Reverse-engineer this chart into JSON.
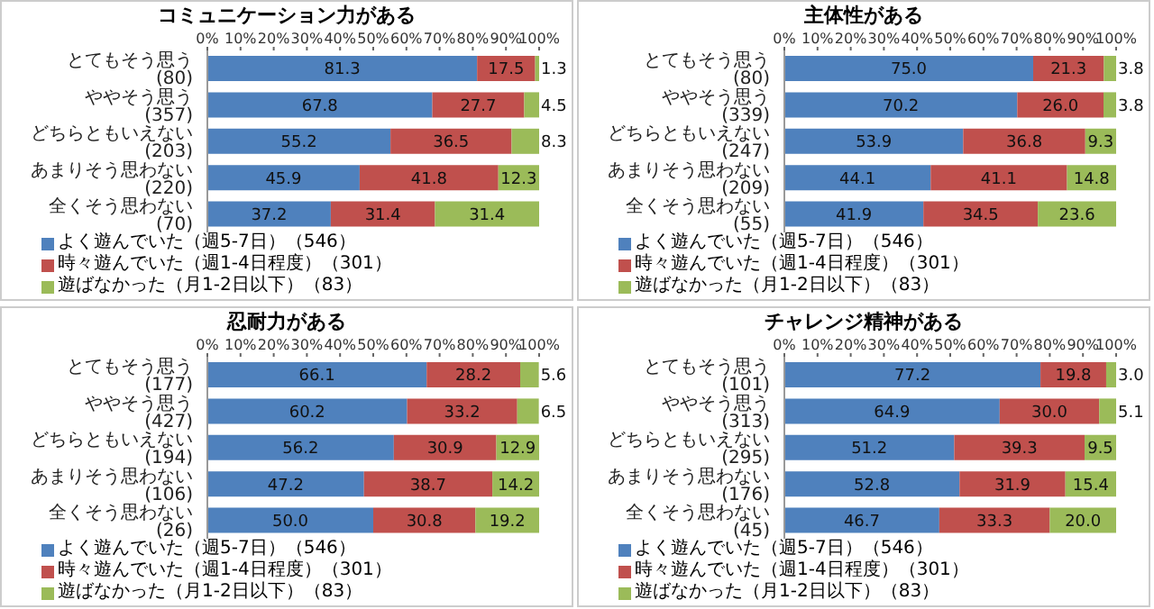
{
  "chart_data": [
    {
      "type": "bar",
      "orientation": "horizontal",
      "stacked": true,
      "title": "コミュニケーション力がある",
      "categories": [
        "とてもそう思う (80)",
        "ややそう思う (357)",
        "どちらともいえない (203)",
        "あまりそう思わない (220)",
        "全くそう思わない (70)"
      ],
      "series": [
        {
          "name": "よく遊んでいた（週5-7日）（546）",
          "color": "#4f81bd",
          "values": [
            81.3,
            67.8,
            55.2,
            45.9,
            37.2
          ],
          "value_labels": [
            "81.3",
            "67.8",
            "55.2",
            "45.9",
            "37.2"
          ]
        },
        {
          "name": "時々遊んでいた（週1-4日程度）（301）",
          "color": "#c0504d",
          "values": [
            17.5,
            27.7,
            36.5,
            41.8,
            31.4
          ],
          "value_labels": [
            "17.5",
            "27.7",
            "36.5",
            "41.8",
            "31.4"
          ]
        },
        {
          "name": "遊ばなかった（月1-2日以下）（83）",
          "color": "#9bbb59",
          "values": [
            1.3,
            4.5,
            8.3,
            12.3,
            31.4
          ],
          "value_labels": [
            "1.3",
            "4.5",
            "8.3",
            "12.3",
            "31.4"
          ]
        }
      ],
      "xlim": [
        0,
        100
      ],
      "xticks": [
        {
          "value": 0,
          "label": "0%"
        },
        {
          "value": 10,
          "label": "10%"
        },
        {
          "value": 20,
          "label": "20%"
        },
        {
          "value": 30,
          "label": "30%"
        },
        {
          "value": 40,
          "label": "40%"
        },
        {
          "value": 50,
          "label": "50%"
        },
        {
          "value": 60,
          "label": "60%"
        },
        {
          "value": 70,
          "label": "70%"
        },
        {
          "value": 80,
          "label": "80%"
        },
        {
          "value": 90,
          "label": "90%"
        },
        {
          "value": 100,
          "label": "100%"
        }
      ],
      "legend": "bottom"
    },
    {
      "type": "bar",
      "orientation": "horizontal",
      "stacked": true,
      "title": "主体性がある",
      "categories": [
        "とてもそう思う (80)",
        "ややそう思う (339)",
        "どちらともいえない (247)",
        "あまりそう思わない (209)",
        "全くそう思わない (55)"
      ],
      "series": [
        {
          "name": "よく遊んでいた（週5-7日）（546）",
          "color": "#4f81bd",
          "values": [
            75.0,
            70.2,
            53.9,
            44.1,
            41.9
          ],
          "value_labels": [
            "75.0",
            "70.2",
            "53.9",
            "44.1",
            "41.9"
          ]
        },
        {
          "name": "時々遊んでいた（週1-4日程度）（301）",
          "color": "#c0504d",
          "values": [
            21.3,
            26.0,
            36.8,
            41.1,
            34.5
          ],
          "value_labels": [
            "21.3",
            "26.0",
            "36.8",
            "41.1",
            "34.5"
          ]
        },
        {
          "name": "遊ばなかった（月1-2日以下）（83）",
          "color": "#9bbb59",
          "values": [
            3.8,
            3.8,
            9.3,
            14.8,
            23.6
          ],
          "value_labels": [
            "3.8",
            "3.8",
            "9.3",
            "14.8",
            "23.6"
          ]
        }
      ],
      "xlim": [
        0,
        100
      ],
      "xticks": [
        {
          "value": 0,
          "label": "0%"
        },
        {
          "value": 10,
          "label": "10%"
        },
        {
          "value": 20,
          "label": "20%"
        },
        {
          "value": 30,
          "label": "30%"
        },
        {
          "value": 40,
          "label": "40%"
        },
        {
          "value": 50,
          "label": "50%"
        },
        {
          "value": 60,
          "label": "60%"
        },
        {
          "value": 70,
          "label": "70%"
        },
        {
          "value": 80,
          "label": "80%"
        },
        {
          "value": 90,
          "label": "90%"
        },
        {
          "value": 100,
          "label": "100%"
        }
      ],
      "legend": "bottom"
    },
    {
      "type": "bar",
      "orientation": "horizontal",
      "stacked": true,
      "title": "忍耐力がある",
      "categories": [
        "とてもそう思う (177)",
        "ややそう思う (427)",
        "どちらともいえない (194)",
        "あまりそう思わない (106)",
        "全くそう思わない (26)"
      ],
      "series": [
        {
          "name": "よく遊んでいた（週5-7日）（546）",
          "color": "#4f81bd",
          "values": [
            66.1,
            60.2,
            56.2,
            47.2,
            50.0
          ],
          "value_labels": [
            "66.1",
            "60.2",
            "56.2",
            "47.2",
            "50.0"
          ]
        },
        {
          "name": "時々遊んでいた（週1-4日程度）（301）",
          "color": "#c0504d",
          "values": [
            28.2,
            33.2,
            30.9,
            38.7,
            30.8
          ],
          "value_labels": [
            "28.2",
            "33.2",
            "30.9",
            "38.7",
            "30.8"
          ]
        },
        {
          "name": "遊ばなかった（月1-2日以下）（83）",
          "color": "#9bbb59",
          "values": [
            5.6,
            6.5,
            12.9,
            14.2,
            19.2
          ],
          "value_labels": [
            "5.6",
            "6.5",
            "12.9",
            "14.2",
            "19.2"
          ]
        }
      ],
      "xlim": [
        0,
        100
      ],
      "xticks": [
        {
          "value": 0,
          "label": "0%"
        },
        {
          "value": 10,
          "label": "10%"
        },
        {
          "value": 20,
          "label": "20%"
        },
        {
          "value": 30,
          "label": "30%"
        },
        {
          "value": 40,
          "label": "40%"
        },
        {
          "value": 50,
          "label": "50%"
        },
        {
          "value": 60,
          "label": "60%"
        },
        {
          "value": 70,
          "label": "70%"
        },
        {
          "value": 80,
          "label": "80%"
        },
        {
          "value": 90,
          "label": "90%"
        },
        {
          "value": 100,
          "label": "100%"
        }
      ],
      "legend": "bottom"
    },
    {
      "type": "bar",
      "orientation": "horizontal",
      "stacked": true,
      "title": "チャレンジ精神がある",
      "categories": [
        "とてもそう思う (101)",
        "ややそう思う (313)",
        "どちらともいえない (295)",
        "あまりそう思わない (176)",
        "全くそう思わない (45)"
      ],
      "series": [
        {
          "name": "よく遊んでいた（週5-7日）（546）",
          "color": "#4f81bd",
          "values": [
            77.2,
            64.9,
            51.2,
            52.8,
            46.7
          ],
          "value_labels": [
            "77.2",
            "64.9",
            "51.2",
            "52.8",
            "46.7"
          ]
        },
        {
          "name": "時々遊んでいた（週1-4日程度）（301）",
          "color": "#c0504d",
          "values": [
            19.8,
            30.0,
            39.3,
            31.9,
            33.3
          ],
          "value_labels": [
            "19.8",
            "30.0",
            "39.3",
            "31.9",
            "33.3"
          ]
        },
        {
          "name": "遊ばなかった（月1-2日以下）（83）",
          "color": "#9bbb59",
          "values": [
            3.0,
            5.1,
            9.5,
            15.4,
            20.0
          ],
          "value_labels": [
            "3.0",
            "5.1",
            "9.5",
            "15.4",
            "20.0"
          ]
        }
      ],
      "xlim": [
        0,
        100
      ],
      "xticks": [
        {
          "value": 0,
          "label": "0%"
        },
        {
          "value": 10,
          "label": "10%"
        },
        {
          "value": 20,
          "label": "20%"
        },
        {
          "value": 30,
          "label": "30%"
        },
        {
          "value": 40,
          "label": "40%"
        },
        {
          "value": 50,
          "label": "50%"
        },
        {
          "value": 60,
          "label": "60%"
        },
        {
          "value": 70,
          "label": "70%"
        },
        {
          "value": 80,
          "label": "80%"
        },
        {
          "value": 90,
          "label": "90%"
        },
        {
          "value": 100,
          "label": "100%"
        }
      ],
      "legend": "bottom"
    }
  ]
}
